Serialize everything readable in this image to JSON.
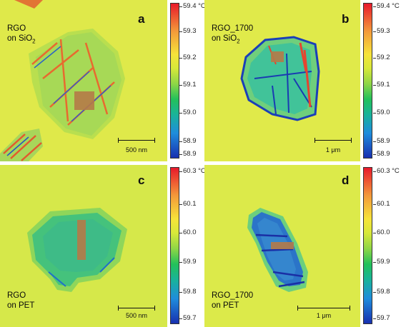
{
  "panels": [
    {
      "letter": "a",
      "label_line1": "RGO",
      "label_line2": "on SiO",
      "label_line2_sub": "2",
      "scale": "500 nm",
      "colorbar": [
        "59.4 °C",
        "59.3",
        "59.2",
        "59.1",
        "59.0",
        "58.9",
        "58.9"
      ]
    },
    {
      "letter": "b",
      "label_line1": "RGO_1700",
      "label_line2": "on SiO",
      "label_line2_sub": "2",
      "scale": "1 μm",
      "colorbar": [
        "59.4 °C",
        "59.3",
        "59.2",
        "59.1",
        "59.0",
        "58.9",
        "58.9"
      ]
    },
    {
      "letter": "c",
      "label_line1": "RGO",
      "label_line2": "on PET",
      "label_line2_sub": "",
      "scale": "500 nm",
      "colorbar": [
        "60.3 °C",
        "60.1",
        "60.0",
        "59.9",
        "59.8",
        "59.7"
      ]
    },
    {
      "letter": "d",
      "label_line1": "RGO_1700",
      "label_line2": "on PET",
      "label_line2_sub": "",
      "scale": "1 μm",
      "colorbar": [
        "60.3 °C",
        "60.1",
        "60.0",
        "59.9",
        "59.8",
        "59.7"
      ]
    }
  ],
  "colors": {
    "background": "#dfe94a",
    "flake": "#37c08a",
    "highlight": "#b57a48"
  }
}
